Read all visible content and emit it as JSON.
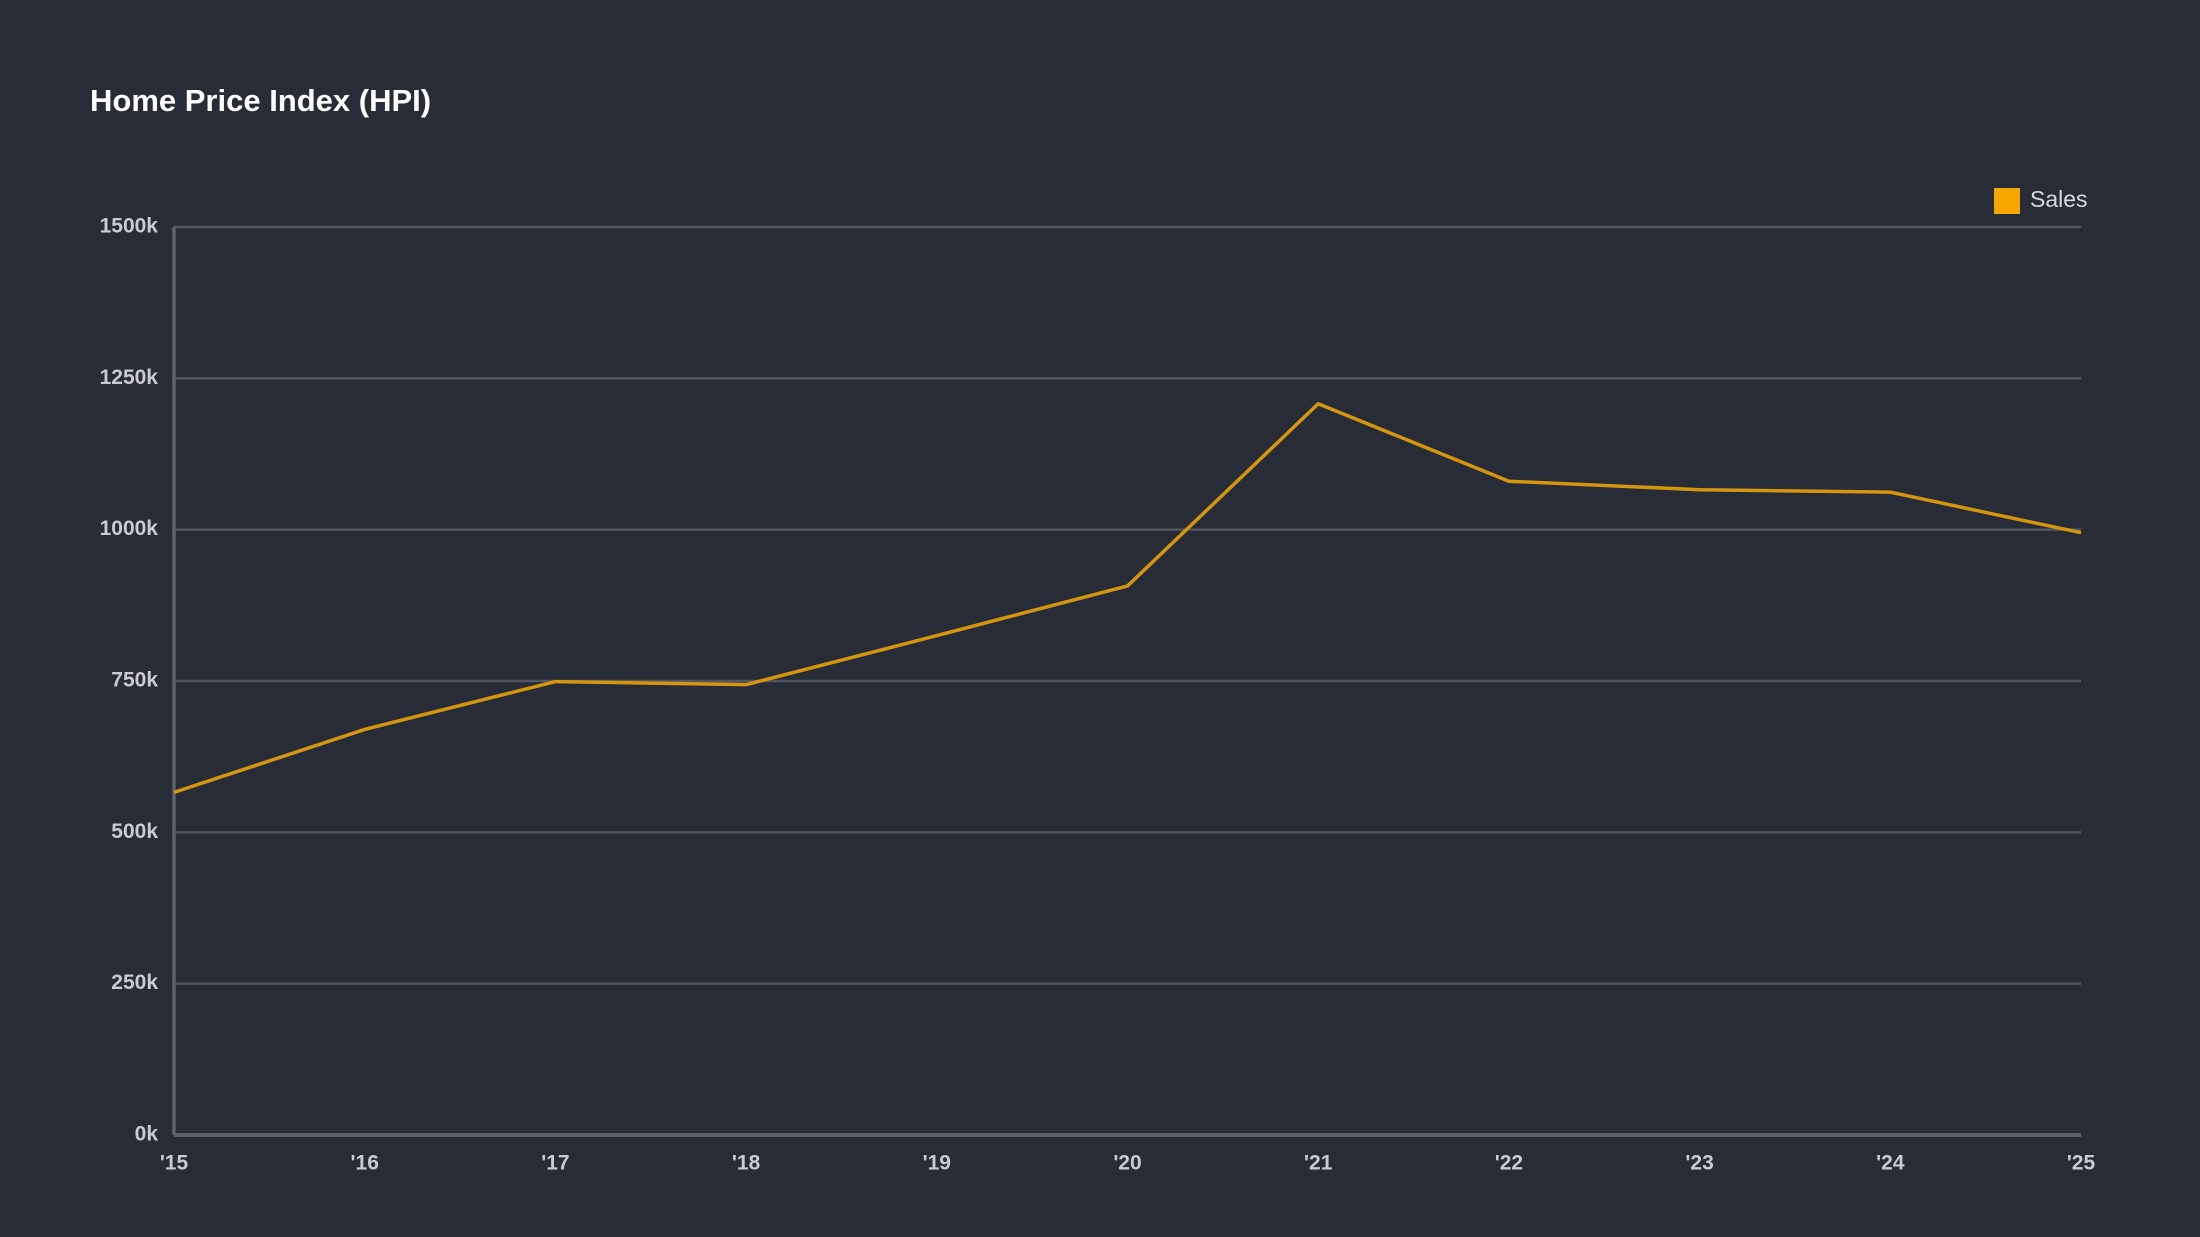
{
  "chart_data": {
    "type": "line",
    "title": "Home Price Index (HPI)",
    "categories": [
      "'15",
      "'16",
      "'17",
      "'18",
      "'19",
      "'20",
      "'21",
      "'22",
      "'23",
      "'24",
      "'25"
    ],
    "series": [
      {
        "name": "Sales",
        "color": "#d4960f",
        "legend_color": "#f5a700",
        "values": [
          566000,
          670000,
          749000,
          744000,
          825000,
          907000,
          1208000,
          1080000,
          1066000,
          1062000,
          995000
        ]
      }
    ],
    "ylim": [
      0,
      1500000
    ],
    "yticks": [
      {
        "value": 0,
        "label": "0k"
      },
      {
        "value": 250000,
        "label": "250k"
      },
      {
        "value": 500000,
        "label": "500k"
      },
      {
        "value": 750000,
        "label": "750k"
      },
      {
        "value": 1000000,
        "label": "1000k"
      },
      {
        "value": 1250000,
        "label": "1250k"
      },
      {
        "value": 1500000,
        "label": "1500k"
      }
    ],
    "grid": true,
    "legend": "top-right"
  }
}
